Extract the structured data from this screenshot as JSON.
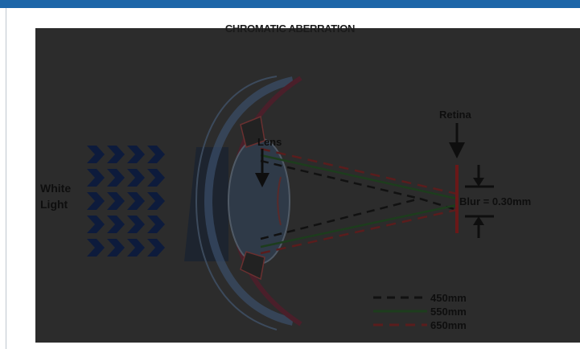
{
  "title": "CHROMATIC ABERRATION",
  "labels": {
    "white": "White",
    "light": "Light",
    "lens": "Lens",
    "retina": "Retina",
    "blur": "Blur = 0.30mm"
  },
  "legend": [
    {
      "label": "450mm",
      "color": "#111111",
      "dash": "10,7"
    },
    {
      "label": "550mm",
      "color": "#1d3d1d",
      "dash": ""
    },
    {
      "label": "650mm",
      "color": "#5a1d1d",
      "dash": "12,8"
    }
  ],
  "colors": {
    "accent": "#1d66a8",
    "figure_bg": "#2c2c2c",
    "chevron": "#0d1b3c",
    "retina": "#6a1818"
  }
}
